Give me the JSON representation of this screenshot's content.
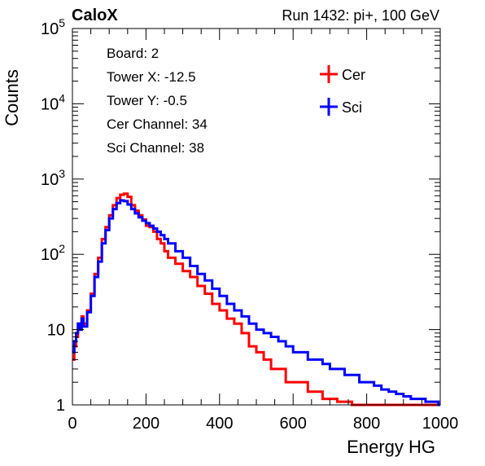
{
  "header": {
    "left": "CaloX",
    "right": "Run 1432: pi+, 100 GeV"
  },
  "info_lines": [
    "Board: 2",
    "Tower X: -12.5",
    "Tower Y: -0.5",
    "Cer Channel: 34",
    "Sci Channel: 38"
  ],
  "colors": {
    "cer": "#ff0000",
    "sci": "#0000ff",
    "axis": "#000000"
  },
  "chart_data": {
    "type": "line",
    "title": "",
    "xlabel": "Energy HG",
    "ylabel": "Counts",
    "xlim": [
      0,
      1000
    ],
    "ylim": [
      1,
      100000
    ],
    "y_scale": "log",
    "grid": false,
    "legend_position": "top-right",
    "x_ticks": [
      0,
      200,
      400,
      600,
      800,
      1000
    ],
    "x_tick_labels": [
      "0",
      "200",
      "400",
      "600",
      "800",
      "1000"
    ],
    "y_ticks": [
      1,
      10,
      100,
      1000,
      10000,
      100000
    ],
    "y_tick_labels": [
      {
        "base": "1",
        "exp": ""
      },
      {
        "base": "10",
        "exp": ""
      },
      {
        "base": "10",
        "exp": "2"
      },
      {
        "base": "10",
        "exp": "3"
      },
      {
        "base": "10",
        "exp": "4"
      },
      {
        "base": "10",
        "exp": "5"
      }
    ],
    "x": [
      0,
      5,
      10,
      15,
      20,
      25,
      30,
      40,
      50,
      60,
      70,
      80,
      90,
      100,
      110,
      120,
      130,
      140,
      150,
      160,
      170,
      180,
      190,
      200,
      210,
      220,
      230,
      240,
      250,
      260,
      280,
      300,
      320,
      340,
      360,
      380,
      400,
      420,
      440,
      460,
      480,
      500,
      520,
      540,
      560,
      580,
      600,
      620,
      640,
      660,
      680,
      700,
      720,
      740,
      760,
      780,
      800,
      820,
      840,
      860,
      880,
      900,
      920,
      940,
      960,
      980,
      995
    ],
    "series": [
      {
        "name": "Cer",
        "values": [
          4,
          6,
          8,
          12,
          10,
          15,
          12,
          18,
          30,
          55,
          90,
          160,
          230,
          330,
          450,
          560,
          620,
          640,
          580,
          450,
          380,
          330,
          290,
          240,
          230,
          200,
          160,
          140,
          110,
          90,
          75,
          60,
          50,
          38,
          30,
          22,
          18,
          14,
          12,
          9,
          6,
          5,
          4,
          3,
          3,
          2,
          2,
          2,
          1.5,
          1.5,
          1.2,
          1.2,
          1.1,
          1.1,
          1,
          1,
          1,
          1,
          1,
          1,
          1,
          1,
          1,
          1,
          1,
          1,
          1
        ]
      },
      {
        "name": "Sci",
        "values": [
          5,
          7,
          9,
          12,
          10,
          14,
          11,
          17,
          28,
          50,
          80,
          140,
          210,
          300,
          400,
          480,
          520,
          510,
          460,
          400,
          350,
          310,
          280,
          260,
          240,
          220,
          200,
          180,
          160,
          140,
          110,
          90,
          70,
          55,
          45,
          35,
          28,
          22,
          18,
          15,
          12,
          10,
          9,
          8,
          7,
          6,
          5,
          5,
          4,
          4,
          3.5,
          3,
          3,
          2.5,
          2.5,
          2,
          2,
          1.8,
          1.6,
          1.5,
          1.4,
          1.3,
          1.2,
          1.2,
          1.1,
          1.1,
          1
        ]
      }
    ]
  }
}
